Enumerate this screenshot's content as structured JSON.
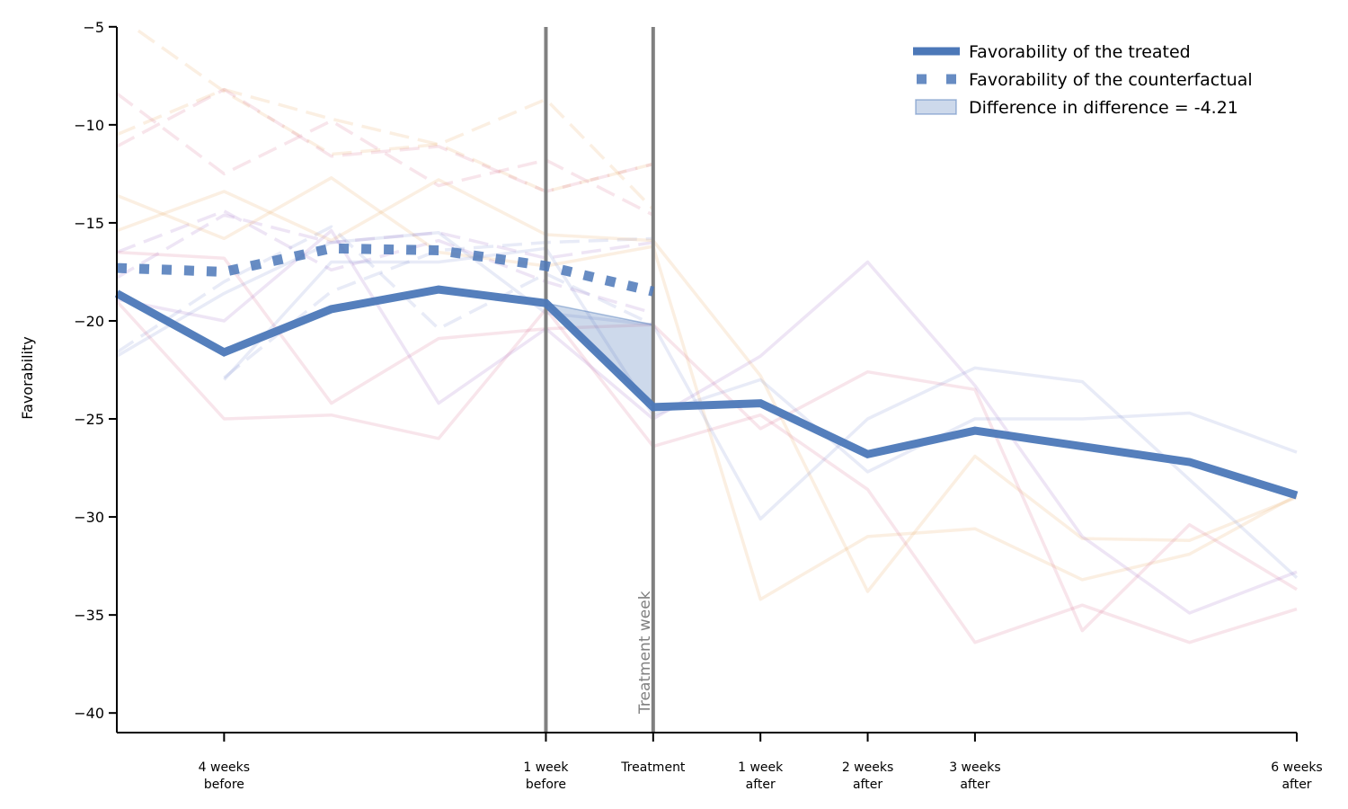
{
  "chart_data": {
    "type": "line",
    "title": "",
    "xlabel": "",
    "ylabel": "Favorability",
    "ylim": [
      -41,
      -5
    ],
    "yticks": [
      -5,
      -10,
      -15,
      -20,
      -25,
      -30,
      -35,
      -40
    ],
    "ytick_labels": [
      "−5",
      "−10",
      "−15",
      "−20",
      "−25",
      "−30",
      "−35",
      "−40"
    ],
    "xlim": [
      -5,
      6
    ],
    "xticks": [
      {
        "x": -4,
        "label": [
          "4 weeks",
          "before"
        ]
      },
      {
        "x": -1,
        "label": [
          "1 week",
          "before"
        ]
      },
      {
        "x": 0,
        "label": [
          "Treatment"
        ]
      },
      {
        "x": 1,
        "label": [
          "1 week",
          "after"
        ]
      },
      {
        "x": 2,
        "label": [
          "2 weeks",
          "after"
        ]
      },
      {
        "x": 3,
        "label": [
          "3 weeks",
          "after"
        ]
      },
      {
        "x": 6,
        "label": [
          "6 weeks",
          "after"
        ]
      }
    ],
    "grid": false,
    "legend_position": "top-right",
    "vertical_lines": [
      -1,
      0
    ],
    "annotation": {
      "text": "Treatment week",
      "x": 0
    },
    "series": [
      {
        "name": "Favorability of the treated",
        "style": "solid",
        "color": "#4c78b8",
        "x": [
          -5,
          -4,
          -3,
          -2,
          -1,
          0,
          1,
          2,
          3,
          4,
          5,
          6
        ],
        "y": [
          -18.6,
          -21.6,
          -19.4,
          -18.4,
          -19.1,
          -24.4,
          -24.2,
          -26.8,
          -25.6,
          -26.4,
          -27.2,
          -28.9
        ]
      },
      {
        "name": "Favorability of the counterfactual",
        "style": "dotted",
        "color": "#4c78b8",
        "x": [
          -5,
          -4,
          -3,
          -2,
          -1,
          0
        ],
        "y": [
          -17.3,
          -17.5,
          -16.3,
          -16.4,
          -17.2,
          -18.5
        ]
      }
    ],
    "difference_band": {
      "name": "Difference in difference = -4.21",
      "color": "#4c78b8",
      "x": [
        -1,
        0
      ],
      "upper": [
        -19.1,
        -20.2
      ],
      "lower": [
        -19.1,
        -24.4
      ]
    },
    "background_series": [
      {
        "style": "dashed",
        "color": "#e8a860",
        "x": [
          -5,
          -4,
          -3,
          -2,
          -1,
          0
        ],
        "y": [
          -10.5,
          -8.2,
          -9.7,
          -11.0,
          -8.7,
          -14.3
        ]
      },
      {
        "style": "dashed",
        "color": "#e8a860",
        "x": [
          -4.8,
          -4,
          -3,
          -2,
          -1,
          0
        ],
        "y": [
          -5.2,
          -8.3,
          -11.5,
          -11.0,
          -13.4,
          -12.0
        ]
      },
      {
        "style": "dashed",
        "color": "#d97090",
        "x": [
          -5,
          -4,
          -3,
          -2,
          -1,
          0
        ],
        "y": [
          -8.4,
          -12.5,
          -9.8,
          -13.1,
          -11.8,
          -14.6
        ]
      },
      {
        "style": "dashed",
        "color": "#d97090",
        "x": [
          -5,
          -4,
          -3,
          -2,
          -1,
          0
        ],
        "y": [
          -11.1,
          -8.2,
          -11.6,
          -11.1,
          -13.4,
          -12.0
        ]
      },
      {
        "style": "dashed",
        "color": "#a070c8",
        "x": [
          -5,
          -4,
          -3,
          -2,
          -1,
          0
        ],
        "y": [
          -16.5,
          -14.4,
          -17.4,
          -15.9,
          -18.0,
          -19.6
        ]
      },
      {
        "style": "dashed",
        "color": "#8090d0",
        "x": [
          -5,
          -4,
          -3,
          -2,
          -1,
          0
        ],
        "y": [
          -21.6,
          -18.0,
          -15.2,
          -20.4,
          -17.6,
          -20.2
        ]
      },
      {
        "style": "dashed",
        "color": "#a070c8",
        "x": [
          -5,
          -4,
          -3,
          -2,
          -1,
          0
        ],
        "y": [
          -17.8,
          -14.6,
          -16.0,
          -15.5,
          -16.8,
          -16.0
        ]
      },
      {
        "style": "dashed",
        "color": "#8090d0",
        "x": [
          -4,
          -3,
          -2,
          -1,
          0
        ],
        "y": [
          -22.9,
          -18.5,
          -16.4,
          -16.0,
          -15.8
        ]
      },
      {
        "style": "solid",
        "color": "#e8a860",
        "x": [
          -5,
          -4,
          -3,
          -2,
          -1,
          0,
          1,
          2,
          3,
          4,
          5,
          6
        ],
        "y": [
          -13.6,
          -15.8,
          -12.7,
          -16.5,
          -17.2,
          -16.2,
          -34.2,
          -31.0,
          -30.6,
          -33.2,
          -31.9,
          -28.9
        ]
      },
      {
        "style": "solid",
        "color": "#e8a860",
        "x": [
          -5,
          -4,
          -3,
          -2,
          -1,
          0,
          1,
          2,
          3,
          4,
          5,
          6
        ],
        "y": [
          -15.4,
          -13.4,
          -15.9,
          -12.8,
          -15.6,
          -15.9,
          -22.8,
          -33.8,
          -26.9,
          -31.1,
          -31.2,
          -29.0
        ]
      },
      {
        "style": "solid",
        "color": "#d97090",
        "x": [
          -5,
          -4,
          -3,
          -2,
          -1,
          0,
          1,
          2,
          3,
          4,
          5,
          6
        ],
        "y": [
          -19.0,
          -25.0,
          -24.8,
          -26.0,
          -19.4,
          -26.4,
          -24.8,
          -28.6,
          -36.4,
          -34.5,
          -36.4,
          -34.7
        ]
      },
      {
        "style": "solid",
        "color": "#d97090",
        "x": [
          -5,
          -4,
          -3,
          -2,
          -1,
          0,
          1,
          2,
          3,
          4,
          5,
          6
        ],
        "y": [
          -16.5,
          -16.8,
          -24.2,
          -20.9,
          -20.4,
          -20.2,
          -25.5,
          -22.6,
          -23.5,
          -35.8,
          -30.4,
          -33.7
        ]
      },
      {
        "style": "solid",
        "color": "#a070c8",
        "x": [
          -5,
          -4,
          -3,
          -2,
          -1,
          0,
          1,
          2,
          3,
          4,
          5,
          6
        ],
        "y": [
          -18.9,
          -20.0,
          -15.4,
          -24.2,
          -20.4,
          -25.0,
          -21.8,
          -17.0,
          -23.3,
          -31.0,
          -34.9,
          -32.8
        ]
      },
      {
        "style": "solid",
        "color": "#8090d0",
        "x": [
          -5,
          -4,
          -3,
          -2,
          -1,
          0,
          1,
          2,
          3,
          4,
          5,
          6
        ],
        "y": [
          -21.8,
          -18.6,
          -16.0,
          -15.5,
          -19.6,
          -20.2,
          -30.1,
          -25.0,
          -22.4,
          -23.1,
          -28.1,
          -33.1
        ]
      },
      {
        "style": "solid",
        "color": "#8090d0",
        "x": [
          -4,
          -3,
          -2,
          -1,
          0,
          1,
          2,
          3,
          4,
          5,
          6
        ],
        "y": [
          -23.0,
          -17.0,
          -17.0,
          -16.3,
          -24.8,
          -23.0,
          -27.7,
          -25.0,
          -25.0,
          -24.7,
          -26.7
        ]
      }
    ]
  }
}
